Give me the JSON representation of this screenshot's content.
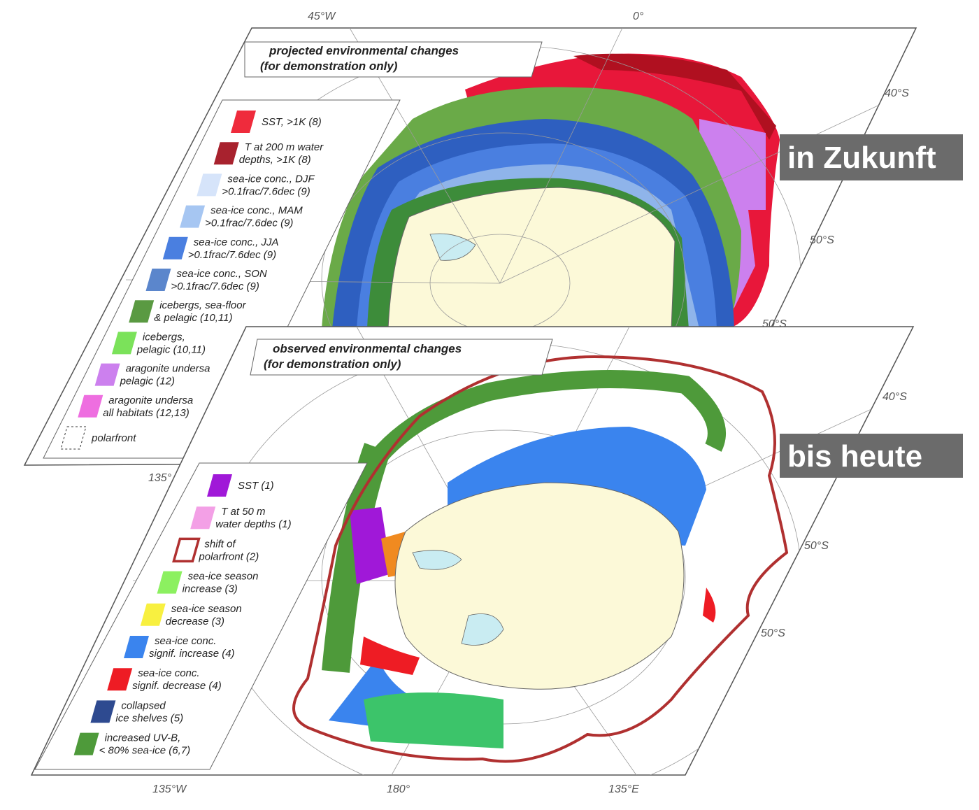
{
  "projected": {
    "title": [
      "projected environmental changes",
      "(for demonstration only)"
    ],
    "legend": [
      {
        "label": [
          "SST, >1K (8)"
        ],
        "color": "#ef2b3c"
      },
      {
        "label": [
          "T at 200 m water",
          "depths, >1K (8)"
        ],
        "color": "#a8222e"
      },
      {
        "label": [
          "sea-ice conc., DJF",
          ">0.1frac/7.6dec (9)"
        ],
        "color": "#d6e4fa"
      },
      {
        "label": [
          "sea-ice conc., MAM",
          ">0.1frac/7.6dec (9)"
        ],
        "color": "#a6c6f2"
      },
      {
        "label": [
          "sea-ice conc., JJA",
          ">0.1frac/7.6dec (9)"
        ],
        "color": "#4a7fe0"
      },
      {
        "label": [
          "sea-ice conc., SON",
          ">0.1frac/7.6dec (9)"
        ],
        "color": "#5b86cc"
      },
      {
        "label": [
          "icebergs, sea-floor",
          "& pelagic (10,11)"
        ],
        "color": "#5a9a42"
      },
      {
        "label": [
          "icebergs,",
          "pelagic (10,11)"
        ],
        "color": "#7be25a"
      },
      {
        "label": [
          "aragonite undersa",
          "pelagic (12)"
        ],
        "color": "#cc80ee"
      },
      {
        "label": [
          "aragonite undersa",
          "all habitats (12,13)"
        ],
        "color": "#ee6ee0"
      },
      {
        "label": [
          "polarfront"
        ],
        "swatch": "dashed"
      }
    ],
    "grid_labels": [
      "45°W",
      "0°",
      "40°S",
      "50°S",
      "50°S",
      "135°"
    ]
  },
  "observed": {
    "title": [
      "observed environmental changes",
      "(for demonstration only)"
    ],
    "legend": [
      {
        "label": [
          "SST (1)"
        ],
        "color": "#a018d8"
      },
      {
        "label": [
          "T at 50 m",
          "water depths (1)"
        ],
        "color": "#f3a0e6"
      },
      {
        "label": [
          "shift of",
          "polarfront (2)"
        ],
        "color": "#b03030",
        "swatch": "outline"
      },
      {
        "label": [
          "sea-ice season",
          "increase (3)"
        ],
        "color": "#8cf060"
      },
      {
        "label": [
          "sea-ice season",
          "decrease (3)"
        ],
        "color": "#f8f040"
      },
      {
        "label": [
          "sea-ice conc.",
          "signif. increase (4)"
        ],
        "color": "#3a84ee"
      },
      {
        "label": [
          "sea-ice conc.",
          "signif. decrease (4)"
        ],
        "color": "#ee1c24"
      },
      {
        "label": [
          "collapsed",
          "ice shelves (5)"
        ],
        "color": "#2e4a90"
      },
      {
        "label": [
          "increased UV-B,",
          "< 80% sea-ice (6,7)"
        ],
        "color": "#4e9a3a"
      }
    ],
    "grid_labels": [
      "40°S",
      "50°S",
      "50°S",
      "135°W",
      "180°",
      "135°E"
    ]
  },
  "badges": [
    "in Zukunft",
    "bis heute"
  ]
}
